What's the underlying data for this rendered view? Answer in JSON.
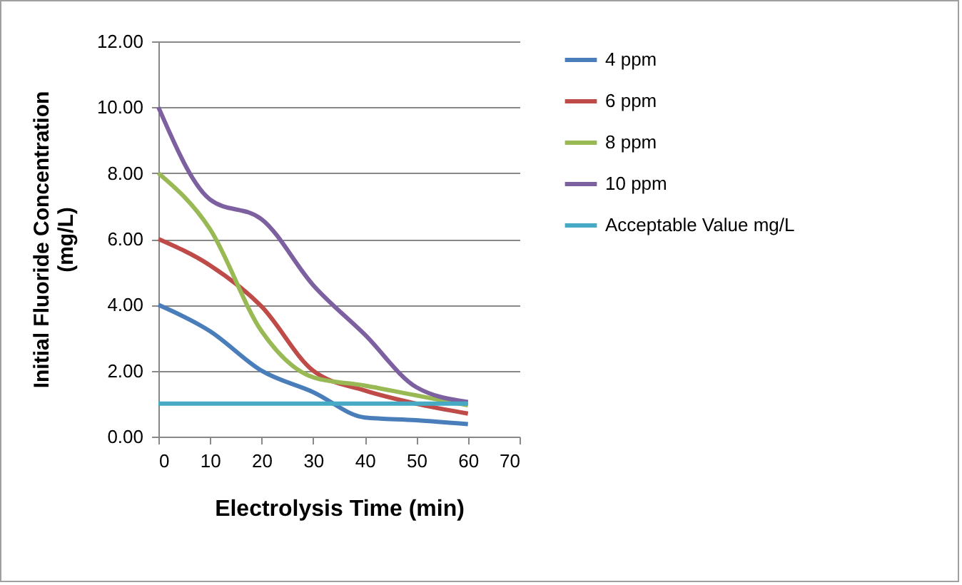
{
  "chart_data": {
    "type": "line",
    "xlabel": "Electrolysis Time (min)",
    "ylabel": "Initial Fluoride Concentration (mg/L)",
    "x": [
      0,
      10,
      20,
      30,
      40,
      50,
      60
    ],
    "series": [
      {
        "name": "4 ppm",
        "color": "#4a7ebb",
        "values": [
          4.0,
          3.2,
          2.0,
          1.35,
          0.58,
          0.5,
          0.38
        ]
      },
      {
        "name": "6 ppm",
        "color": "#be4b48",
        "values": [
          6.0,
          5.2,
          3.95,
          2.0,
          1.4,
          1.0,
          0.7
        ]
      },
      {
        "name": "8 ppm",
        "color": "#98b954",
        "values": [
          8.0,
          6.3,
          3.2,
          1.8,
          1.55,
          1.25,
          0.95
        ]
      },
      {
        "name": "10 ppm",
        "color": "#7d60a0",
        "values": [
          10.0,
          7.2,
          6.6,
          4.6,
          3.1,
          1.5,
          1.05
        ]
      },
      {
        "name": "Acceptable Value mg/L",
        "color": "#46aac5",
        "values": [
          1,
          1,
          1,
          1,
          1,
          1,
          1
        ]
      }
    ],
    "xlim": [
      0,
      70
    ],
    "xticks": [
      0,
      10,
      20,
      30,
      40,
      50,
      60,
      70
    ],
    "ylim": [
      0,
      12
    ],
    "yticks": [
      {
        "value": 0,
        "label": "0.00"
      },
      {
        "value": 2,
        "label": "2.00"
      },
      {
        "value": 4,
        "label": "4.00"
      },
      {
        "value": 6,
        "label": "6.00"
      },
      {
        "value": 8,
        "label": "8.00"
      },
      {
        "value": 10,
        "label": "10.00"
      },
      {
        "value": 12,
        "label": "12.00"
      }
    ],
    "grid": "y",
    "legend": "right",
    "marker": "none",
    "line_style": "solid"
  }
}
